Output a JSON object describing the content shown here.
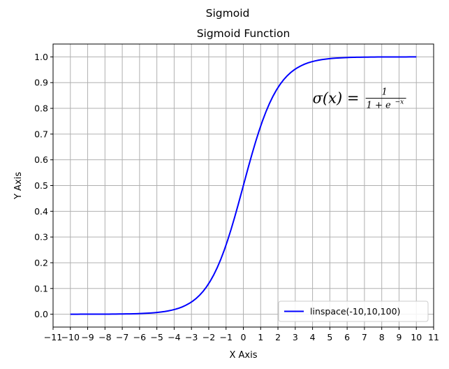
{
  "chart_data": {
    "type": "line",
    "suptitle": "Sigmoid",
    "title": "Sigmoid Function",
    "xlabel": "X Axis",
    "ylabel": "Y Axis",
    "xlim": [
      -11,
      11
    ],
    "ylim": [
      -0.05,
      1.05
    ],
    "xticks": [
      -11,
      -10,
      -9,
      -8,
      -7,
      -6,
      -5,
      -4,
      -3,
      -2,
      -1,
      0,
      1,
      2,
      3,
      4,
      5,
      6,
      7,
      8,
      9,
      10,
      11
    ],
    "xtick_labels": [
      "−11",
      "−10",
      "−9",
      "−8",
      "−7",
      "−6",
      "−5",
      "−4",
      "−3",
      "−2",
      "−1",
      "0",
      "1",
      "2",
      "3",
      "4",
      "5",
      "6",
      "7",
      "8",
      "9",
      "10",
      "11"
    ],
    "yticks": [
      0.0,
      0.1,
      0.2,
      0.3,
      0.4,
      0.5,
      0.6,
      0.7,
      0.8,
      0.9,
      1.0
    ],
    "ytick_labels": [
      "0.0",
      "0.1",
      "0.2",
      "0.3",
      "0.4",
      "0.5",
      "0.6",
      "0.7",
      "0.8",
      "0.9",
      "1.0"
    ],
    "grid": true,
    "legend_position": "lower-right",
    "series": [
      {
        "name": "linspace(-10,10,100)",
        "color": "#0000ff",
        "x": [
          -10,
          -9,
          -8,
          -7,
          -6,
          -5,
          -4,
          -3,
          -2.5,
          -2,
          -1.5,
          -1,
          -0.5,
          0,
          0.5,
          1,
          1.5,
          2,
          2.5,
          3,
          4,
          5,
          6,
          7,
          8,
          9,
          10
        ],
        "y": [
          4.54e-05,
          0.000123,
          0.000335,
          0.000911,
          0.00247,
          0.00669,
          0.018,
          0.0474,
          0.0759,
          0.1192,
          0.1824,
          0.2689,
          0.3775,
          0.5,
          0.6225,
          0.7311,
          0.8176,
          0.8808,
          0.9241,
          0.9526,
          0.982,
          0.9933,
          0.9975,
          0.9991,
          0.99966,
          0.99988,
          0.99995
        ]
      }
    ],
    "annotation": {
      "lhs": "σ(x) =",
      "numerator": "1",
      "denominator": "1 + e",
      "exponent": "−x",
      "x": 4,
      "y": 0.82
    }
  }
}
